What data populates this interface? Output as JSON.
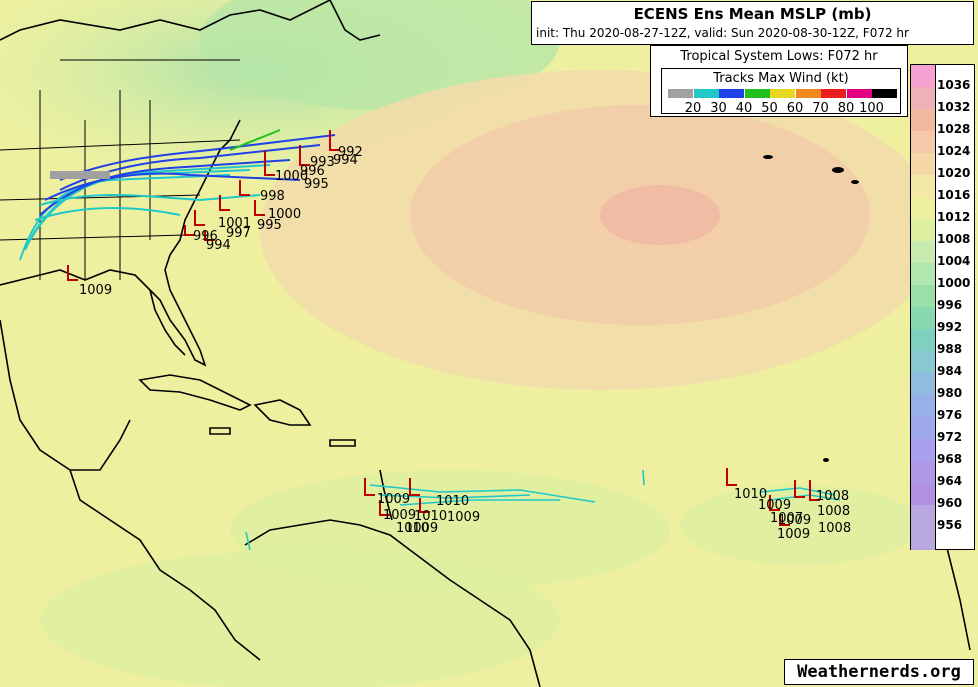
{
  "header": {
    "title": "ECENS Ens Mean MSLP (mb)",
    "subtitle": "init: Thu 2020-08-27-12Z, valid: Sun 2020-08-30-12Z, F072 hr"
  },
  "legend": {
    "title": "Tropical System Lows: F072 hr",
    "wind_title": "Tracks Max Wind (kt)",
    "wind_bins": [
      {
        "label": "20",
        "color": "#a0a0a0"
      },
      {
        "label": "30",
        "color": "#20c8c8"
      },
      {
        "label": "40",
        "color": "#2040e8"
      },
      {
        "label": "50",
        "color": "#20c020"
      },
      {
        "label": "60",
        "color": "#e8d820"
      },
      {
        "label": "70",
        "color": "#f08820"
      },
      {
        "label": "80",
        "color": "#e82020"
      },
      {
        "label": "100",
        "color": "#e00080"
      },
      {
        "label": "",
        "color": "#000000"
      }
    ]
  },
  "colorbar": {
    "levels": [
      "1036",
      "1032",
      "1028",
      "1024",
      "1020",
      "1016",
      "1012",
      "1008",
      "1004",
      "1000",
      "996",
      "992",
      "988",
      "984",
      "980",
      "976",
      "972",
      "968",
      "964",
      "960",
      "956"
    ],
    "colors": [
      "#f4a0d0",
      "#f0b0b8",
      "#f2b8a0",
      "#f4c8a8",
      "#f6d8a8",
      "#f4e8a8",
      "#eef0a0",
      "#dcf0a0",
      "#c8ecb0",
      "#b0e8b0",
      "#98e0a8",
      "#88d8b0",
      "#80d0c0",
      "#88c8d0",
      "#90bce0",
      "#98b0e8",
      "#a0a8ec",
      "#a8a0ec",
      "#b098e8",
      "#b090e0",
      "#b8a8e0"
    ]
  },
  "pressure_labels": {
    "us_east": [
      "992",
      "994",
      "993",
      "996",
      "995",
      "1000",
      "1000",
      "995",
      "994",
      "1001",
      "998",
      "997",
      "996"
    ],
    "gulf": "1009",
    "caribbean": [
      "1009",
      "1010",
      "1009",
      "1010",
      "1009",
      "1010",
      "1009"
    ],
    "mdr": [
      "1010",
      "1009",
      "1008",
      "1008",
      "1009",
      "1008",
      "1007",
      "1009"
    ]
  },
  "credit": "Weathernerds.org"
}
